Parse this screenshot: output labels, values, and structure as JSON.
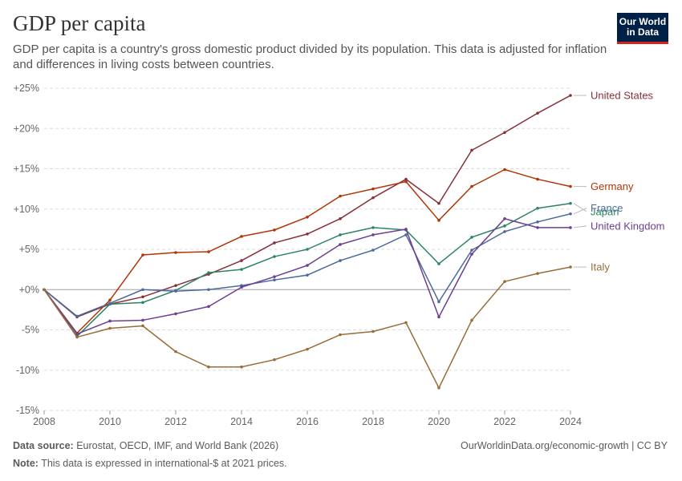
{
  "header": {
    "title": "GDP per capita",
    "subtitle": "GDP per capita is a country's gross domestic product divided by its population. This data is adjusted for inflation and differences in living costs between countries."
  },
  "logo": {
    "line1": "Our World",
    "line2": "in Data",
    "bg_color": "#002147",
    "accent_color": "#ce261e"
  },
  "footer": {
    "source_label": "Data source:",
    "source_text": "Eurostat, OECD, IMF, and World Bank (2026)",
    "note_label": "Note:",
    "note_text": "This data is expressed in international-$ at 2021 prices.",
    "right_text": "OurWorldinData.org/economic-growth | CC BY"
  },
  "chart_data": {
    "type": "line",
    "title": "GDP per capita",
    "xlabel": "",
    "ylabel": "",
    "xlim": [
      2008,
      2024
    ],
    "ylim": [
      -15,
      25
    ],
    "x_ticks": [
      2008,
      2010,
      2012,
      2014,
      2016,
      2018,
      2020,
      2022,
      2024
    ],
    "y_ticks": [
      {
        "value": 25,
        "label": "+25%"
      },
      {
        "value": 20,
        "label": "+20%"
      },
      {
        "value": 15,
        "label": "+15%"
      },
      {
        "value": 10,
        "label": "+10%"
      },
      {
        "value": 5,
        "label": "+5%"
      },
      {
        "value": 0,
        "label": "+0%"
      },
      {
        "value": -5,
        "label": "-5%"
      },
      {
        "value": -10,
        "label": "-10%"
      },
      {
        "value": -15,
        "label": "-15%"
      }
    ],
    "grid": true,
    "legend": "right-end-labels",
    "x": [
      2008,
      2009,
      2010,
      2011,
      2012,
      2013,
      2014,
      2015,
      2016,
      2017,
      2018,
      2019,
      2020,
      2021,
      2022,
      2023,
      2024
    ],
    "series": [
      {
        "name": "United States",
        "color": "#883039",
        "values": [
          0,
          -3.4,
          -1.8,
          -0.9,
          0.5,
          1.9,
          3.6,
          5.8,
          6.9,
          8.8,
          11.4,
          13.7,
          10.7,
          17.3,
          19.5,
          21.9,
          24.1
        ]
      },
      {
        "name": "Germany",
        "color": "#b13507",
        "values": [
          0,
          -5.4,
          -1.3,
          4.3,
          4.6,
          4.7,
          6.6,
          7.4,
          9.0,
          11.6,
          12.5,
          13.4,
          8.6,
          12.8,
          14.9,
          13.7,
          12.8
        ]
      },
      {
        "name": "Japan",
        "color": "#2c8465",
        "values": [
          0,
          -5.8,
          -1.8,
          -1.6,
          -0.1,
          2.1,
          2.5,
          4.1,
          5.0,
          6.8,
          7.7,
          7.4,
          3.2,
          6.5,
          7.9,
          10.1,
          10.7
        ]
      },
      {
        "name": "France",
        "color": "#4c6a9c",
        "values": [
          0,
          -3.3,
          -1.7,
          0.0,
          -0.2,
          0.0,
          0.5,
          1.2,
          1.8,
          3.6,
          4.9,
          6.8,
          -1.5,
          4.9,
          7.2,
          8.4,
          9.4
        ]
      },
      {
        "name": "United Kingdom",
        "color": "#6d3e91",
        "values": [
          0,
          -5.5,
          -3.9,
          -3.8,
          -3.0,
          -2.1,
          0.3,
          1.6,
          3.0,
          5.6,
          6.8,
          7.5,
          -3.4,
          4.4,
          8.8,
          7.7,
          7.7
        ]
      },
      {
        "name": "Italy",
        "color": "#996d39",
        "values": [
          0,
          -5.9,
          -4.8,
          -4.5,
          -7.7,
          -9.6,
          -9.6,
          -8.7,
          -7.4,
          -5.6,
          -5.2,
          -4.1,
          -12.2,
          -3.8,
          1.0,
          2.0,
          2.8
        ]
      }
    ]
  }
}
